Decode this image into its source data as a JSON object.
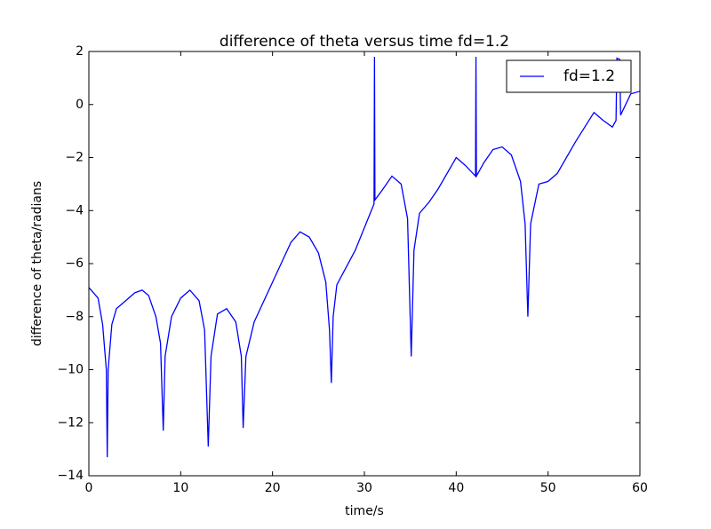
{
  "chart_data": {
    "type": "line",
    "title": "difference of theta versus time  fd=1.2",
    "x_label": "time/s",
    "y_label": "difference of theta/radians",
    "x": [
      0,
      1,
      1.5,
      1.9,
      2.0,
      2.1,
      2.5,
      3,
      4,
      5,
      5.8,
      6.5,
      7.3,
      7.8,
      8.1,
      8.3,
      9,
      10,
      11,
      12,
      12.6,
      13.0,
      13.3,
      14,
      15,
      16,
      16.6,
      16.8,
      17.1,
      18,
      20,
      22,
      23,
      24,
      25,
      25.8,
      26.2,
      26.4,
      26.6,
      27,
      29,
      31.05,
      31.1,
      31.15,
      32,
      33,
      34,
      34.7,
      35.1,
      35.4,
      36,
      37,
      38,
      40,
      41,
      42.1,
      42.15,
      42.2,
      43,
      44,
      45,
      46,
      47,
      47.5,
      47.8,
      48.1,
      49,
      50,
      51,
      53,
      55,
      56,
      57,
      57.4,
      57.5,
      57.8,
      57.9,
      59,
      60
    ],
    "series": [
      {
        "name": "fd=1.2",
        "color": "#0000ff",
        "values": [
          -6.9,
          -7.3,
          -8.3,
          -10,
          -13.3,
          -10,
          -8.3,
          -7.7,
          -7.4,
          -7.1,
          -7.0,
          -7.2,
          -8.0,
          -9.0,
          -12.3,
          -9.5,
          -8.0,
          -7.3,
          -7.0,
          -7.4,
          -8.5,
          -12.9,
          -9.5,
          -7.9,
          -7.7,
          -8.2,
          -9.5,
          -12.2,
          -9.5,
          -8.2,
          -6.7,
          -5.2,
          -4.8,
          -5.0,
          -5.6,
          -6.7,
          -8.5,
          -10.5,
          -8.0,
          -6.8,
          -5.5,
          -3.75,
          1.8,
          -3.6,
          -3.2,
          -2.7,
          -3.0,
          -4.3,
          -9.5,
          -5.5,
          -4.1,
          -3.7,
          -3.2,
          -2.0,
          -2.3,
          -2.7,
          1.8,
          -2.7,
          -2.2,
          -1.7,
          -1.6,
          -1.9,
          -2.9,
          -4.5,
          -8.0,
          -4.5,
          -3.0,
          -2.9,
          -2.6,
          -1.4,
          -0.3,
          -0.6,
          -0.85,
          -0.6,
          1.75,
          1.7,
          -0.4,
          0.4,
          0.5
        ]
      }
    ],
    "xlim": [
      0,
      60
    ],
    "ylim": [
      -14,
      2
    ],
    "xticks": [
      0,
      10,
      20,
      30,
      40,
      50,
      60
    ],
    "yticks": [
      {
        "value": -14,
        "label": "−14"
      },
      {
        "value": -12,
        "label": "−12"
      },
      {
        "value": -10,
        "label": "−10"
      },
      {
        "value": -8,
        "label": "−8"
      },
      {
        "value": -6,
        "label": "−6"
      },
      {
        "value": -4,
        "label": "−4"
      },
      {
        "value": -2,
        "label": "−2"
      },
      0,
      2
    ],
    "legend": "upper right"
  }
}
